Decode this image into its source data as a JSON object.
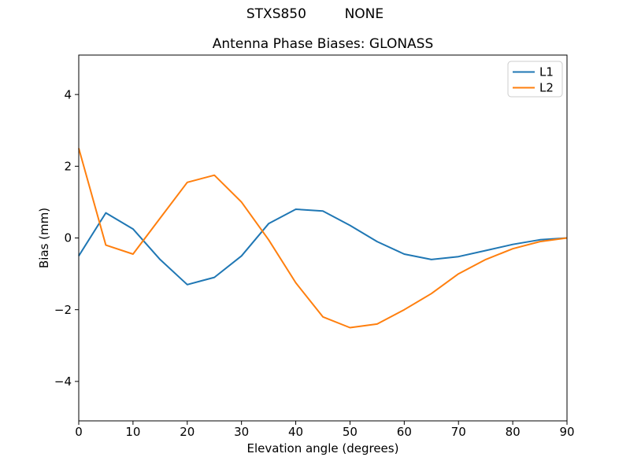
{
  "figure": {
    "suptitle": "STXS850         NONE",
    "background": "#ffffff",
    "text_color": "#000000"
  },
  "chart_data": {
    "type": "line",
    "title": "Antenna Phase Biases: GLONASS",
    "xlabel": "Elevation angle (degrees)",
    "ylabel": "Bias (mm)",
    "x": [
      0,
      5,
      10,
      15,
      20,
      25,
      30,
      35,
      40,
      45,
      50,
      55,
      60,
      65,
      70,
      75,
      80,
      85,
      90
    ],
    "series": [
      {
        "name": "L1",
        "color": "#1f77b4",
        "values": [
          -0.5,
          0.7,
          0.25,
          -0.6,
          -1.3,
          -1.1,
          -0.5,
          0.4,
          0.8,
          0.75,
          0.35,
          -0.1,
          -0.45,
          -0.6,
          -0.52,
          -0.35,
          -0.18,
          -0.05,
          0.0
        ]
      },
      {
        "name": "L2",
        "color": "#ff7f0e",
        "values": [
          2.5,
          -0.2,
          -0.45,
          0.55,
          1.55,
          1.75,
          1.0,
          -0.05,
          -1.25,
          -2.2,
          -2.5,
          -2.4,
          -2.0,
          -1.55,
          -1.0,
          -0.6,
          -0.3,
          -0.1,
          0.0
        ]
      }
    ],
    "xlim": [
      0,
      90
    ],
    "ylim": [
      -5.1,
      5.1
    ],
    "xticks": [
      0,
      10,
      20,
      30,
      40,
      50,
      60,
      70,
      80,
      90
    ],
    "yticks": [
      -4,
      -2,
      0,
      2,
      4
    ],
    "grid": false,
    "legend_position": "upper right",
    "axis_color": "#000000",
    "legend_border_color": "#cccccc",
    "legend_background": "#ffffff"
  }
}
